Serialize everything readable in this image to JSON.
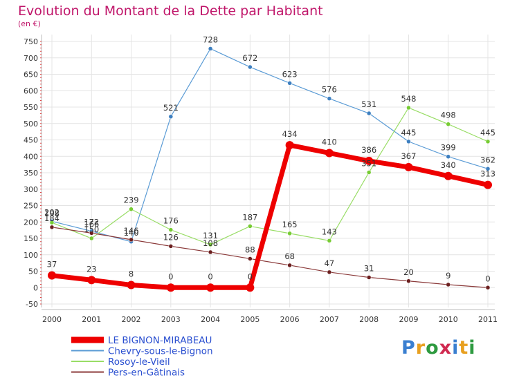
{
  "title": "Evolution du Montant de la Dette par Habitant",
  "subtitle": "(en €)",
  "logo": {
    "text": "Proxiti",
    "colors": [
      "#3a7fd0",
      "#e8a020",
      "#2e9a40",
      "#d02a50",
      "#3a7fd0",
      "#e8a020",
      "#2e9a40"
    ]
  },
  "chart_data": {
    "type": "line",
    "title": "Evolution du Montant de la Dette par Habitant",
    "ylabel": "(en €)",
    "xlabel": "",
    "ylim": [
      -50,
      750
    ],
    "yticks": [
      -50,
      0,
      50,
      100,
      150,
      200,
      250,
      300,
      350,
      400,
      450,
      500,
      550,
      600,
      650,
      700,
      750
    ],
    "grid": true,
    "legend_position": "bottom-left",
    "categories": [
      "2000",
      "2001",
      "2002",
      "2003",
      "2004",
      "2005",
      "2006",
      "2007",
      "2008",
      "2009",
      "2010",
      "2011"
    ],
    "series": [
      {
        "name": "Chevry-sous-le-Bignon",
        "color": "#5a9bd5",
        "marker": "#3d7fc0",
        "width": 1.2,
        "values": [
          202,
          172,
          140,
          521,
          728,
          672,
          623,
          576,
          531,
          445,
          399,
          362
        ]
      },
      {
        "name": "Rosoy-le-Vieil",
        "color": "#99dd66",
        "marker": "#77cc33",
        "width": 1.2,
        "values": [
          198,
          150,
          239,
          176,
          131,
          187,
          165,
          143,
          351,
          548,
          498,
          445
        ]
      },
      {
        "name": "Pers-en-Gâtinais",
        "color": "#8b3a3a",
        "marker": "#6b1f1f",
        "width": 1.2,
        "values": [
          184,
          166,
          146,
          126,
          108,
          88,
          68,
          47,
          31,
          20,
          9,
          0
        ]
      },
      {
        "name": "LE BIGNON-MIRABEAU",
        "color": "#ee0000",
        "marker": "#ee0000",
        "width": 7,
        "values": [
          37,
          23,
          8,
          0,
          0,
          0,
          434,
          410,
          386,
          367,
          340,
          313
        ]
      }
    ],
    "legend_order": [
      "LE BIGNON-MIRABEAU",
      "Chevry-sous-le-Bignon",
      "Rosoy-le-Vieil",
      "Pers-en-Gâtinais"
    ]
  }
}
